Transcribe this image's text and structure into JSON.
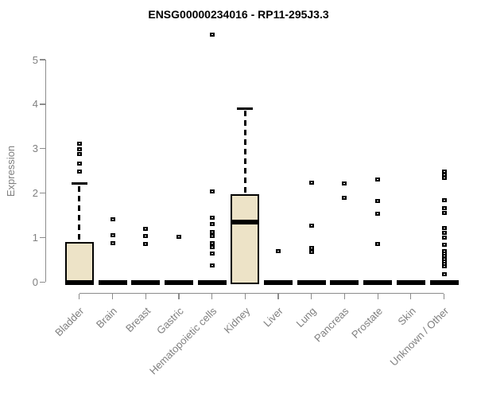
{
  "chart_data": {
    "type": "boxplot",
    "title": "ENSG00000234016 - RP11-295J3.3",
    "ylabel": "Expression",
    "xlabel": "",
    "ylim": [
      0,
      5.7
    ],
    "yticks": [
      0,
      1,
      2,
      3,
      4,
      5
    ],
    "grid": false,
    "legend": false,
    "categories": [
      "Bladder",
      "Brain",
      "Breast",
      "Gastric",
      "Hematopoietic cells",
      "Kidney",
      "Liver",
      "Lung",
      "Pancreas",
      "Prostate",
      "Skin",
      "Unknown / Other"
    ],
    "series": [
      {
        "name": "Bladder",
        "q1": 0,
        "median": 0,
        "q3": 0.9,
        "whisker_low": 0,
        "whisker_high": 2.21,
        "outliers": [
          2.48,
          2.67,
          2.87,
          2.99,
          3.11
        ]
      },
      {
        "name": "Brain",
        "q1": 0,
        "median": 0,
        "q3": 0,
        "whisker_low": 0,
        "whisker_high": 0,
        "outliers": [
          0.87,
          1.06,
          1.41
        ]
      },
      {
        "name": "Breast",
        "q1": 0,
        "median": 0,
        "q3": 0,
        "whisker_low": 0,
        "whisker_high": 0,
        "outliers": [
          0.86,
          1.04,
          1.19
        ]
      },
      {
        "name": "Gastric",
        "q1": 0,
        "median": 0,
        "q3": 0,
        "whisker_low": 0,
        "whisker_high": 0,
        "outliers": [
          1.02
        ]
      },
      {
        "name": "Hematopoietic cells",
        "q1": 0,
        "median": 0,
        "q3": 0,
        "whisker_low": 0,
        "whisker_high": 0,
        "outliers": [
          0.37,
          0.64,
          0.79,
          0.88,
          1.03,
          1.12,
          1.3,
          1.45,
          2.03,
          5.57
        ]
      },
      {
        "name": "Kidney",
        "q1": 0,
        "median": 1.35,
        "q3": 1.97,
        "whisker_low": 0,
        "whisker_high": 3.9,
        "outliers": []
      },
      {
        "name": "Liver",
        "q1": 0,
        "median": 0,
        "q3": 0,
        "whisker_low": 0,
        "whisker_high": 0,
        "outliers": [
          0.7
        ]
      },
      {
        "name": "Lung",
        "q1": 0,
        "median": 0,
        "q3": 0,
        "whisker_low": 0,
        "whisker_high": 0,
        "outliers": [
          0.67,
          0.76,
          1.26,
          2.24
        ]
      },
      {
        "name": "Pancreas",
        "q1": 0,
        "median": 0,
        "q3": 0,
        "whisker_low": 0,
        "whisker_high": 0,
        "outliers": [
          1.9,
          2.21
        ]
      },
      {
        "name": "Prostate",
        "q1": 0,
        "median": 0,
        "q3": 0,
        "whisker_low": 0,
        "whisker_high": 0,
        "outliers": [
          0.85,
          1.54,
          1.82,
          2.3
        ]
      },
      {
        "name": "Skin",
        "q1": 0,
        "median": 0,
        "q3": 0,
        "whisker_low": 0,
        "whisker_high": 0,
        "outliers": []
      },
      {
        "name": "Unknown / Other",
        "q1": 0,
        "median": 0,
        "q3": 0,
        "whisker_low": 0,
        "whisker_high": 0,
        "outliers": [
          0.17,
          0.35,
          0.41,
          0.47,
          0.52,
          0.58,
          0.64,
          0.7,
          0.84,
          1.0,
          1.1,
          1.21,
          1.55,
          1.66,
          1.84,
          2.35,
          2.42,
          2.49
        ]
      }
    ],
    "colors": {
      "box_fill": "#ede3c7",
      "box_border": "#000000",
      "median": "#000000",
      "whisker": "#000000",
      "outlier": "#000000",
      "axis": "#8c8c8c",
      "axis_text": "#7f7f7f",
      "title_text": "#000000"
    }
  }
}
